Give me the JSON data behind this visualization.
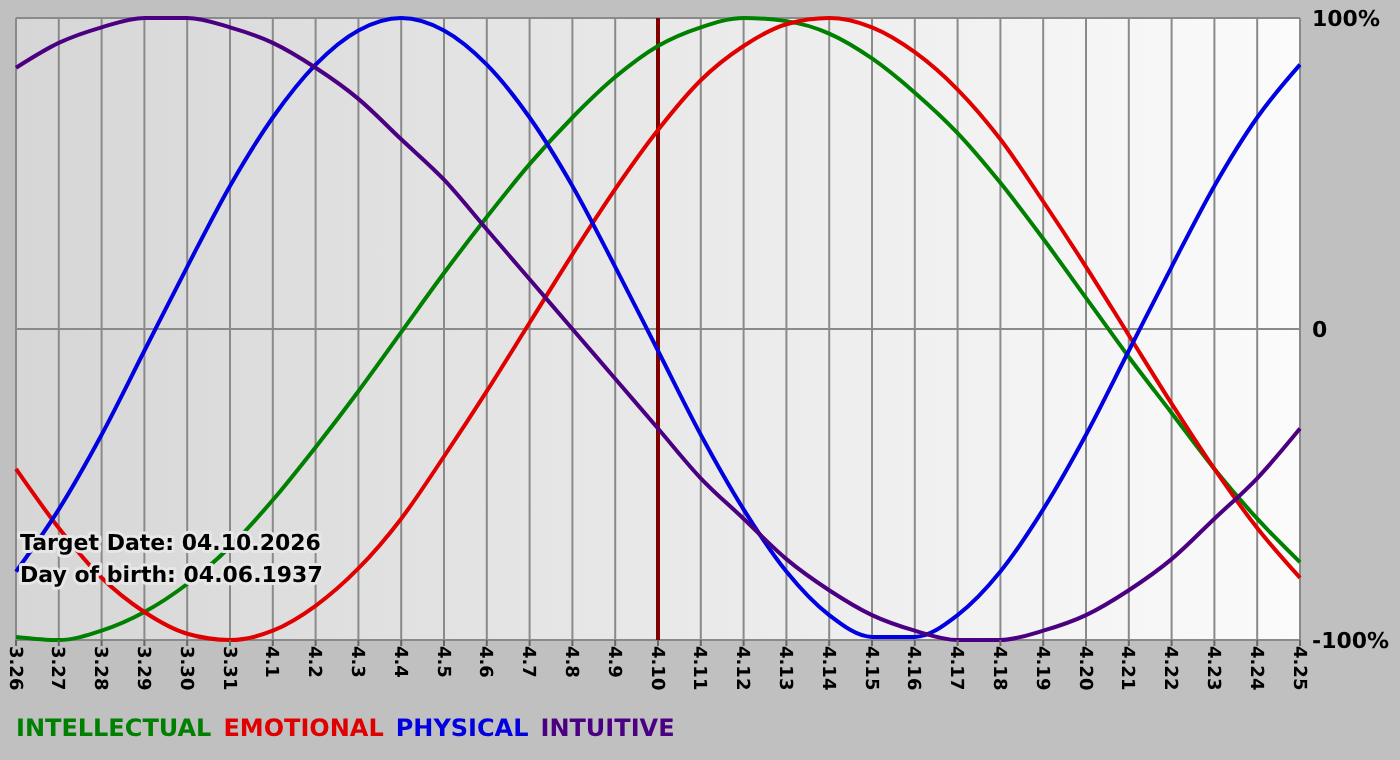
{
  "chart_data": {
    "type": "line",
    "categories": [
      "3.26",
      "3.27",
      "3.28",
      "3.29",
      "3.30",
      "3.31",
      "4.1",
      "4.2",
      "4.3",
      "4.4",
      "4.5",
      "4.6",
      "4.7",
      "4.8",
      "4.9",
      "4.10",
      "4.11",
      "4.12",
      "4.13",
      "4.14",
      "4.15",
      "4.16",
      "4.17",
      "4.18",
      "4.19",
      "4.20",
      "4.21",
      "4.22",
      "4.23",
      "4.24",
      "4.25"
    ],
    "series": [
      {
        "name": "INTELLECTUAL",
        "color": "#008000",
        "values": [
          -99,
          -100,
          -97,
          -91,
          -82,
          -70,
          -55,
          -38,
          -20,
          -1,
          18,
          36,
          53,
          68,
          81,
          91,
          97,
          100,
          99,
          95,
          87,
          76,
          63,
          47,
          29,
          10,
          -9,
          -27,
          -45,
          -61,
          -75
        ]
      },
      {
        "name": "EMOTIONAL",
        "color": "#e00000",
        "values": [
          -45,
          -64,
          -80,
          -91,
          -98,
          -100,
          -97,
          -89,
          -77,
          -61,
          -41,
          -20,
          2,
          24,
          45,
          64,
          80,
          91,
          98,
          100,
          97,
          89,
          77,
          61,
          41,
          20,
          -2,
          -24,
          -45,
          -64,
          -80
        ]
      },
      {
        "name": "PHYSICAL",
        "color": "#0000e0",
        "values": [
          -78,
          -58,
          -34,
          -7,
          20,
          46,
          68,
          85,
          96,
          100,
          96,
          85,
          68,
          46,
          20,
          -7,
          -34,
          -58,
          -78,
          -92,
          -99,
          -99,
          -92,
          -78,
          -58,
          -34,
          -7,
          20,
          46,
          68,
          85
        ]
      },
      {
        "name": "INTUITIVE",
        "color": "#4b0082",
        "values": [
          84,
          92,
          97,
          100,
          100,
          97,
          92,
          84,
          74,
          61,
          48,
          32,
          16,
          0,
          -16,
          -32,
          -48,
          -61,
          -74,
          -84,
          -92,
          -97,
          -100,
          -100,
          -97,
          -92,
          -84,
          -74,
          -61,
          -48,
          -32
        ]
      }
    ],
    "ylim": [
      -100,
      100
    ],
    "yticks": [
      {
        "value": -100,
        "label": "-100%"
      },
      0,
      {
        "value": 100,
        "label": "100%"
      }
    ],
    "grid": true,
    "legend": "bottom",
    "marker": "none",
    "line_style": "solid",
    "ref_lines": [
      {
        "axis": "x",
        "value": "4.10",
        "color": "#800000"
      }
    ],
    "annotations": [
      "Target Date: 04.10.2026",
      "Day of birth: 04.06.1937"
    ]
  }
}
